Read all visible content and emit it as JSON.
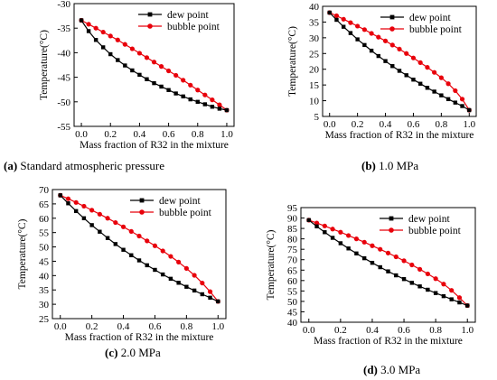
{
  "chart_data": [
    {
      "type": "line",
      "caption_letter": "(a)",
      "caption_text": " Standard atmospheric pressure",
      "xlabel": "Mass fraction of R32 in the mixture",
      "ylabel": "Temperature(°C)",
      "xlim": [
        -0.05,
        1.05
      ],
      "ylim": [
        -55,
        -30
      ],
      "xticks": [
        "0.0",
        "0.2",
        "0.4",
        "0.6",
        "0.8",
        "1.0"
      ],
      "yticks": [
        "-55",
        "-50",
        "-45",
        "-40",
        "-35",
        "-30"
      ],
      "xtick_values": [
        0,
        0.2,
        0.4,
        0.6,
        0.8,
        1.0
      ],
      "ytick_values": [
        -55,
        -50,
        -45,
        -40,
        -35,
        -30
      ],
      "legend": "top-right",
      "grid": false,
      "x": [
        0.0,
        0.05,
        0.1,
        0.15,
        0.2,
        0.25,
        0.3,
        0.35,
        0.4,
        0.45,
        0.5,
        0.55,
        0.6,
        0.65,
        0.7,
        0.75,
        0.8,
        0.85,
        0.9,
        0.95,
        1.0
      ],
      "series": [
        {
          "name": "dew point",
          "color": "#000000",
          "marker": "square",
          "values": [
            -33.4,
            -35.6,
            -37.4,
            -38.9,
            -40.3,
            -41.5,
            -42.6,
            -43.6,
            -44.5,
            -45.4,
            -46.2,
            -46.9,
            -47.6,
            -48.3,
            -48.9,
            -49.5,
            -50.0,
            -50.5,
            -51.0,
            -51.4,
            -51.7
          ]
        },
        {
          "name": "bubble point",
          "color": "#e8000b",
          "marker": "circle",
          "values": [
            -33.4,
            -34.2,
            -35.0,
            -35.8,
            -36.6,
            -37.4,
            -38.3,
            -39.2,
            -40.1,
            -41.0,
            -41.9,
            -42.8,
            -43.7,
            -44.6,
            -45.6,
            -46.6,
            -47.6,
            -48.6,
            -49.6,
            -50.6,
            -51.7
          ]
        }
      ]
    },
    {
      "type": "line",
      "caption_letter": "(b)",
      "caption_text": " 1.0 MPa",
      "xlabel": "Mass fraction of R32 in the mixture",
      "ylabel": "Temperature(°C)",
      "xlim": [
        -0.05,
        1.05
      ],
      "ylim": [
        5,
        40
      ],
      "xticks": [
        "0.0",
        "0.2",
        "0.4",
        "0.6",
        "0.8",
        "1.0"
      ],
      "yticks": [
        "5",
        "10",
        "15",
        "20",
        "25",
        "30",
        "35",
        "40"
      ],
      "xtick_values": [
        0,
        0.2,
        0.4,
        0.6,
        0.8,
        1.0
      ],
      "ytick_values": [
        5,
        10,
        15,
        20,
        25,
        30,
        35,
        40
      ],
      "legend": "top-right",
      "grid": false,
      "x": [
        0.0,
        0.05,
        0.1,
        0.15,
        0.2,
        0.25,
        0.3,
        0.35,
        0.4,
        0.45,
        0.5,
        0.55,
        0.6,
        0.65,
        0.7,
        0.75,
        0.8,
        0.85,
        0.9,
        0.95,
        1.0
      ],
      "series": [
        {
          "name": "dew point",
          "color": "#000000",
          "marker": "square",
          "values": [
            38.0,
            35.7,
            33.5,
            31.5,
            29.5,
            27.7,
            25.9,
            24.2,
            22.6,
            21.0,
            19.5,
            18.1,
            16.7,
            15.4,
            14.1,
            12.9,
            11.7,
            10.5,
            9.4,
            8.3,
            7.0
          ]
        },
        {
          "name": "bubble point",
          "color": "#e8000b",
          "marker": "circle",
          "values": [
            38.0,
            37.0,
            35.9,
            34.8,
            33.7,
            32.6,
            31.4,
            30.2,
            29.0,
            27.7,
            26.4,
            25.0,
            23.6,
            22.1,
            20.6,
            19.0,
            17.3,
            15.4,
            13.2,
            10.5,
            7.0
          ]
        }
      ]
    },
    {
      "type": "line",
      "caption_letter": "(c)",
      "caption_text": " 2.0 MPa",
      "xlabel": "Mass fraction of R32 in the mixture",
      "ylabel": "Temperature(°C)",
      "xlim": [
        -0.05,
        1.05
      ],
      "ylim": [
        25,
        70
      ],
      "xticks": [
        "0.0",
        "0.2",
        "0.4",
        "0.6",
        "0.8",
        "1.0"
      ],
      "yticks": [
        "25",
        "30",
        "35",
        "40",
        "45",
        "50",
        "55",
        "60",
        "65",
        "70"
      ],
      "xtick_values": [
        0,
        0.2,
        0.4,
        0.6,
        0.8,
        1.0
      ],
      "ytick_values": [
        25,
        30,
        35,
        40,
        45,
        50,
        55,
        60,
        65,
        70
      ],
      "legend": "top-right",
      "grid": false,
      "x": [
        0.0,
        0.05,
        0.1,
        0.15,
        0.2,
        0.25,
        0.3,
        0.35,
        0.4,
        0.45,
        0.5,
        0.55,
        0.6,
        0.65,
        0.7,
        0.75,
        0.8,
        0.85,
        0.9,
        0.95,
        1.0
      ],
      "series": [
        {
          "name": "dew point",
          "color": "#000000",
          "marker": "square",
          "values": [
            68.0,
            65.2,
            62.5,
            60.0,
            57.6,
            55.3,
            53.1,
            51.0,
            49.0,
            47.1,
            45.3,
            43.6,
            42.0,
            40.4,
            38.9,
            37.5,
            36.1,
            34.8,
            33.5,
            32.3,
            31.0
          ]
        },
        {
          "name": "bubble point",
          "color": "#e8000b",
          "marker": "circle",
          "values": [
            68.0,
            66.8,
            65.5,
            64.2,
            62.8,
            61.4,
            60.0,
            58.5,
            57.0,
            55.4,
            53.8,
            52.1,
            50.4,
            48.6,
            46.7,
            44.7,
            42.5,
            40.1,
            37.4,
            34.4,
            31.0
          ]
        }
      ]
    },
    {
      "type": "line",
      "caption_letter": "(d)",
      "caption_text": " 3.0 MPa",
      "xlabel": "Mass fraction of R32 in the mixture",
      "ylabel": "Temperature(°C)",
      "xlim": [
        -0.05,
        1.05
      ],
      "ylim": [
        40,
        95
      ],
      "xticks": [
        "0.0",
        "0.2",
        "0.4",
        "0.6",
        "0.8",
        "1.0"
      ],
      "yticks": [
        "40",
        "45",
        "50",
        "55",
        "60",
        "65",
        "70",
        "75",
        "80",
        "85",
        "90",
        "95"
      ],
      "xtick_values": [
        0,
        0.2,
        0.4,
        0.6,
        0.8,
        1.0
      ],
      "ytick_values": [
        40,
        45,
        50,
        55,
        60,
        65,
        70,
        75,
        80,
        85,
        90,
        95
      ],
      "legend": "top-right",
      "grid": false,
      "x": [
        0.0,
        0.05,
        0.1,
        0.15,
        0.2,
        0.25,
        0.3,
        0.35,
        0.4,
        0.45,
        0.5,
        0.55,
        0.6,
        0.65,
        0.7,
        0.75,
        0.8,
        0.85,
        0.9,
        0.95,
        1.0
      ],
      "series": [
        {
          "name": "dew point",
          "color": "#000000",
          "marker": "square",
          "values": [
            89.0,
            86.0,
            83.2,
            80.5,
            77.9,
            75.4,
            73.0,
            70.7,
            68.5,
            66.4,
            64.4,
            62.5,
            60.7,
            58.9,
            57.2,
            55.6,
            54.0,
            52.5,
            51.0,
            49.5,
            48.0
          ]
        },
        {
          "name": "bubble point",
          "color": "#e8000b",
          "marker": "circle",
          "values": [
            89.0,
            87.6,
            86.2,
            84.7,
            83.2,
            81.6,
            80.0,
            78.4,
            76.7,
            75.0,
            73.2,
            71.4,
            69.5,
            67.5,
            65.4,
            63.2,
            60.9,
            58.3,
            55.3,
            51.8,
            48.0
          ]
        }
      ]
    }
  ]
}
